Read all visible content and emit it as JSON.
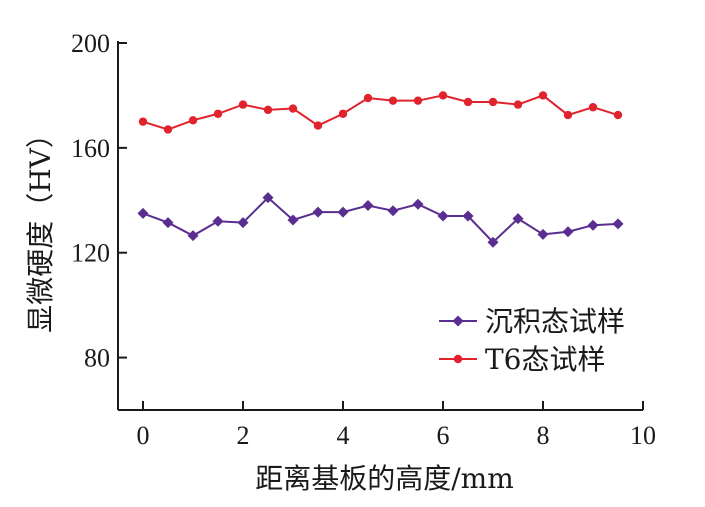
{
  "chart_data": {
    "type": "line",
    "xlabel": "距离基板的高度/mm",
    "ylabel": "显微硬度（HV）",
    "xlim": [
      -0.5,
      10
    ],
    "ylim": [
      60,
      200
    ],
    "xticks": [
      0,
      2,
      4,
      6,
      8,
      10
    ],
    "yticks": [
      80,
      120,
      160,
      200
    ],
    "grid": false,
    "legend_position": "lower-right",
    "x": [
      0,
      0.5,
      1,
      1.5,
      2,
      2.5,
      3,
      3.5,
      4,
      4.5,
      5,
      5.5,
      6,
      6.5,
      7,
      7.5,
      8,
      8.5,
      9,
      9.5
    ],
    "series": [
      {
        "name": "沉积态试样",
        "color": "#5a2d91",
        "marker": "diamond",
        "values": [
          135,
          131.5,
          126.5,
          132,
          131.5,
          141,
          132.5,
          135.5,
          135.5,
          138,
          136,
          138.5,
          134,
          134,
          124,
          133,
          127,
          128,
          130.5,
          131
        ]
      },
      {
        "name": "T6态试样",
        "color": "#e0232c",
        "marker": "circle",
        "values": [
          170,
          167,
          170.5,
          173,
          176.5,
          174.5,
          175,
          168.5,
          173,
          179,
          178,
          178,
          180,
          177.5,
          177.5,
          176.5,
          180,
          172.5,
          175.5,
          172.5
        ]
      }
    ]
  }
}
